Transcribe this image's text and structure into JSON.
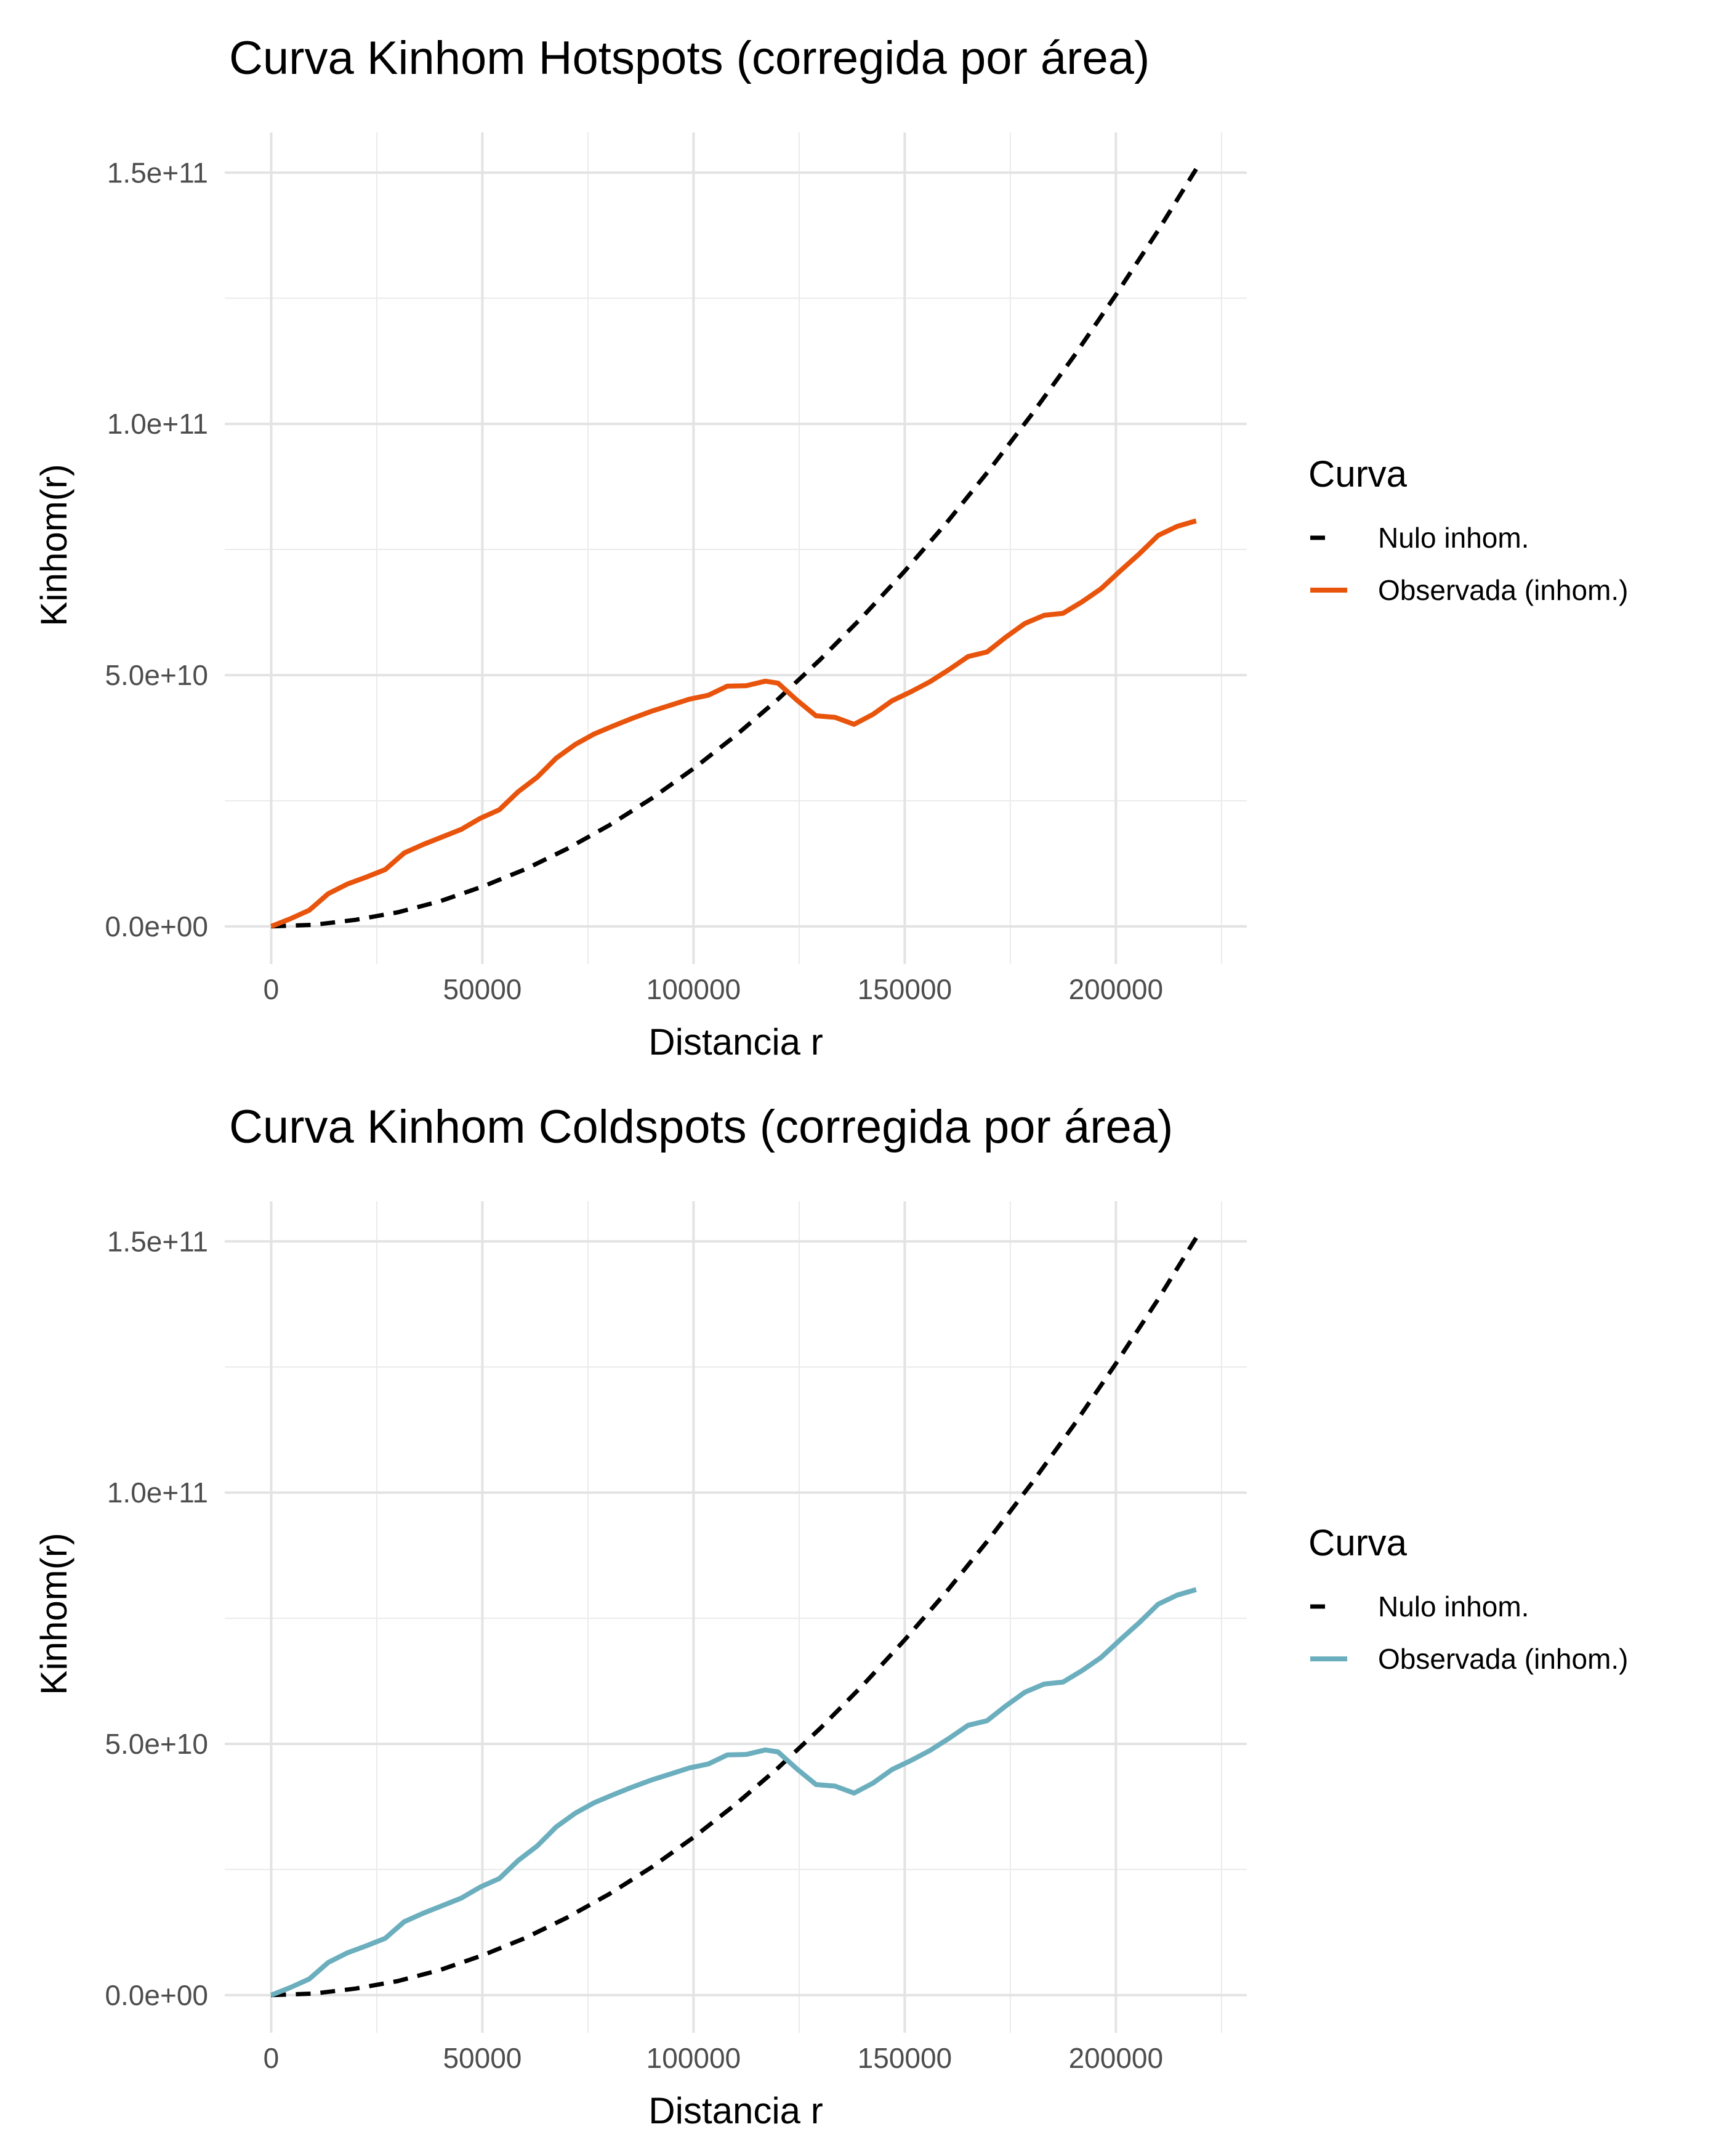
{
  "chart_data": [
    {
      "type": "line",
      "title": "Curva Kinhom Hotspots (corregida por área)",
      "xlabel": "Distancia r",
      "ylabel": "Kinhom(r)",
      "xlim": [
        -11000,
        231000
      ],
      "ylim": [
        -7500000000,
        158000000000
      ],
      "x_ticks": [
        0,
        50000,
        100000,
        150000,
        200000
      ],
      "x_tick_labels": [
        "0",
        "50000",
        "100000",
        "150000",
        "200000"
      ],
      "y_ticks": [
        0,
        50000000000,
        100000000000,
        150000000000
      ],
      "y_tick_labels": [
        "0.0e+00",
        "5.0e+10",
        "1.0e+11",
        "1.5e+11"
      ],
      "grid": true,
      "legend": {
        "title": "Curva",
        "position": "right"
      },
      "series": [
        {
          "name": "Nulo inhom.",
          "color": "#000000",
          "dash": true,
          "x": [
            0,
            10000,
            20000,
            30000,
            40000,
            50000,
            60000,
            70000,
            80000,
            90000,
            100000,
            110000,
            120000,
            130000,
            140000,
            150000,
            160000,
            170000,
            180000,
            190000,
            200000,
            210000,
            219000
          ],
          "y": [
            0,
            300000000,
            1300000000,
            2800000000,
            5000000000,
            7900000000,
            11300000000,
            15400000000,
            20100000000,
            25400000000,
            31400000000,
            38000000000,
            45200000000,
            53100000000,
            61600000000,
            70700000000,
            80400000000,
            90800000000,
            101800000000,
            113400000000,
            125700000000,
            138500000000,
            150700000000
          ]
        },
        {
          "name": "Observada (inhom.)",
          "color": "#E8540C",
          "dash": false,
          "x": [
            0,
            4500,
            9000,
            13500,
            18000,
            22500,
            27000,
            31500,
            36000,
            40500,
            45000,
            49500,
            54000,
            58500,
            63000,
            67500,
            72000,
            76500,
            81000,
            85500,
            90000,
            94500,
            99000,
            103500,
            108000,
            112500,
            117000,
            120000,
            124500,
            129000,
            133500,
            138000,
            142500,
            147000,
            151500,
            156000,
            160500,
            165000,
            169500,
            174000,
            178500,
            183000,
            187500,
            192000,
            196500,
            201000,
            205500,
            210000,
            214500,
            219000
          ],
          "y": [
            0,
            1500000000,
            3200000000,
            6500000000,
            8400000000,
            9800000000,
            11300000000,
            14600000000,
            16300000000,
            17800000000,
            19300000000,
            21500000000,
            23200000000,
            26800000000,
            29700000000,
            33500000000,
            36200000000,
            38300000000,
            39900000000,
            41400000000,
            42800000000,
            44000000000,
            45200000000,
            46000000000,
            47800000000,
            47900000000,
            48800000000,
            48400000000,
            45000000000,
            41900000000,
            41600000000,
            40200000000,
            42200000000,
            44900000000,
            46700000000,
            48700000000,
            51100000000,
            53700000000,
            54600000000,
            57600000000,
            60300000000,
            61900000000,
            62300000000,
            64600000000,
            67200000000,
            70700000000,
            74100000000,
            77800000000,
            79600000000,
            80700000000
          ]
        }
      ]
    },
    {
      "type": "line",
      "title": "Curva Kinhom Coldspots (corregida por área)",
      "xlabel": "Distancia r",
      "ylabel": "Kinhom(r)",
      "xlim": [
        -11000,
        231000
      ],
      "ylim": [
        -7500000000,
        158000000000
      ],
      "x_ticks": [
        0,
        50000,
        100000,
        150000,
        200000
      ],
      "x_tick_labels": [
        "0",
        "50000",
        "100000",
        "150000",
        "200000"
      ],
      "y_ticks": [
        0,
        50000000000,
        100000000000,
        150000000000
      ],
      "y_tick_labels": [
        "0.0e+00",
        "5.0e+10",
        "1.0e+11",
        "1.5e+11"
      ],
      "grid": true,
      "legend": {
        "title": "Curva",
        "position": "right"
      },
      "series": [
        {
          "name": "Nulo inhom.",
          "color": "#000000",
          "dash": true,
          "x": [
            0,
            10000,
            20000,
            30000,
            40000,
            50000,
            60000,
            70000,
            80000,
            90000,
            100000,
            110000,
            120000,
            130000,
            140000,
            150000,
            160000,
            170000,
            180000,
            190000,
            200000,
            210000,
            219000
          ],
          "y": [
            0,
            300000000,
            1300000000,
            2800000000,
            5000000000,
            7900000000,
            11300000000,
            15400000000,
            20100000000,
            25400000000,
            31400000000,
            38000000000,
            45200000000,
            53100000000,
            61600000000,
            70700000000,
            80400000000,
            90800000000,
            101800000000,
            113400000000,
            125700000000,
            138500000000,
            150700000000
          ]
        },
        {
          "name": "Observada (inhom.)",
          "color": "#6BAEBD",
          "dash": false,
          "x": [
            0,
            4500,
            9000,
            13500,
            18000,
            22500,
            27000,
            31500,
            36000,
            40500,
            45000,
            49500,
            54000,
            58500,
            63000,
            67500,
            72000,
            76500,
            81000,
            85500,
            90000,
            94500,
            99000,
            103500,
            108000,
            112500,
            117000,
            120000,
            124500,
            129000,
            133500,
            138000,
            142500,
            147000,
            151500,
            156000,
            160500,
            165000,
            169500,
            174000,
            178500,
            183000,
            187500,
            192000,
            196500,
            201000,
            205500,
            210000,
            214500,
            219000
          ],
          "y": [
            0,
            1500000000,
            3200000000,
            6500000000,
            8400000000,
            9800000000,
            11300000000,
            14600000000,
            16300000000,
            17800000000,
            19300000000,
            21500000000,
            23200000000,
            26800000000,
            29700000000,
            33500000000,
            36200000000,
            38300000000,
            39900000000,
            41400000000,
            42800000000,
            44000000000,
            45200000000,
            46000000000,
            47800000000,
            47900000000,
            48800000000,
            48400000000,
            45000000000,
            41900000000,
            41600000000,
            40200000000,
            42200000000,
            44900000000,
            46700000000,
            48700000000,
            51100000000,
            53700000000,
            54600000000,
            57600000000,
            60300000000,
            61900000000,
            62300000000,
            64600000000,
            67200000000,
            70700000000,
            74100000000,
            77800000000,
            79600000000,
            80700000000
          ]
        }
      ]
    }
  ]
}
